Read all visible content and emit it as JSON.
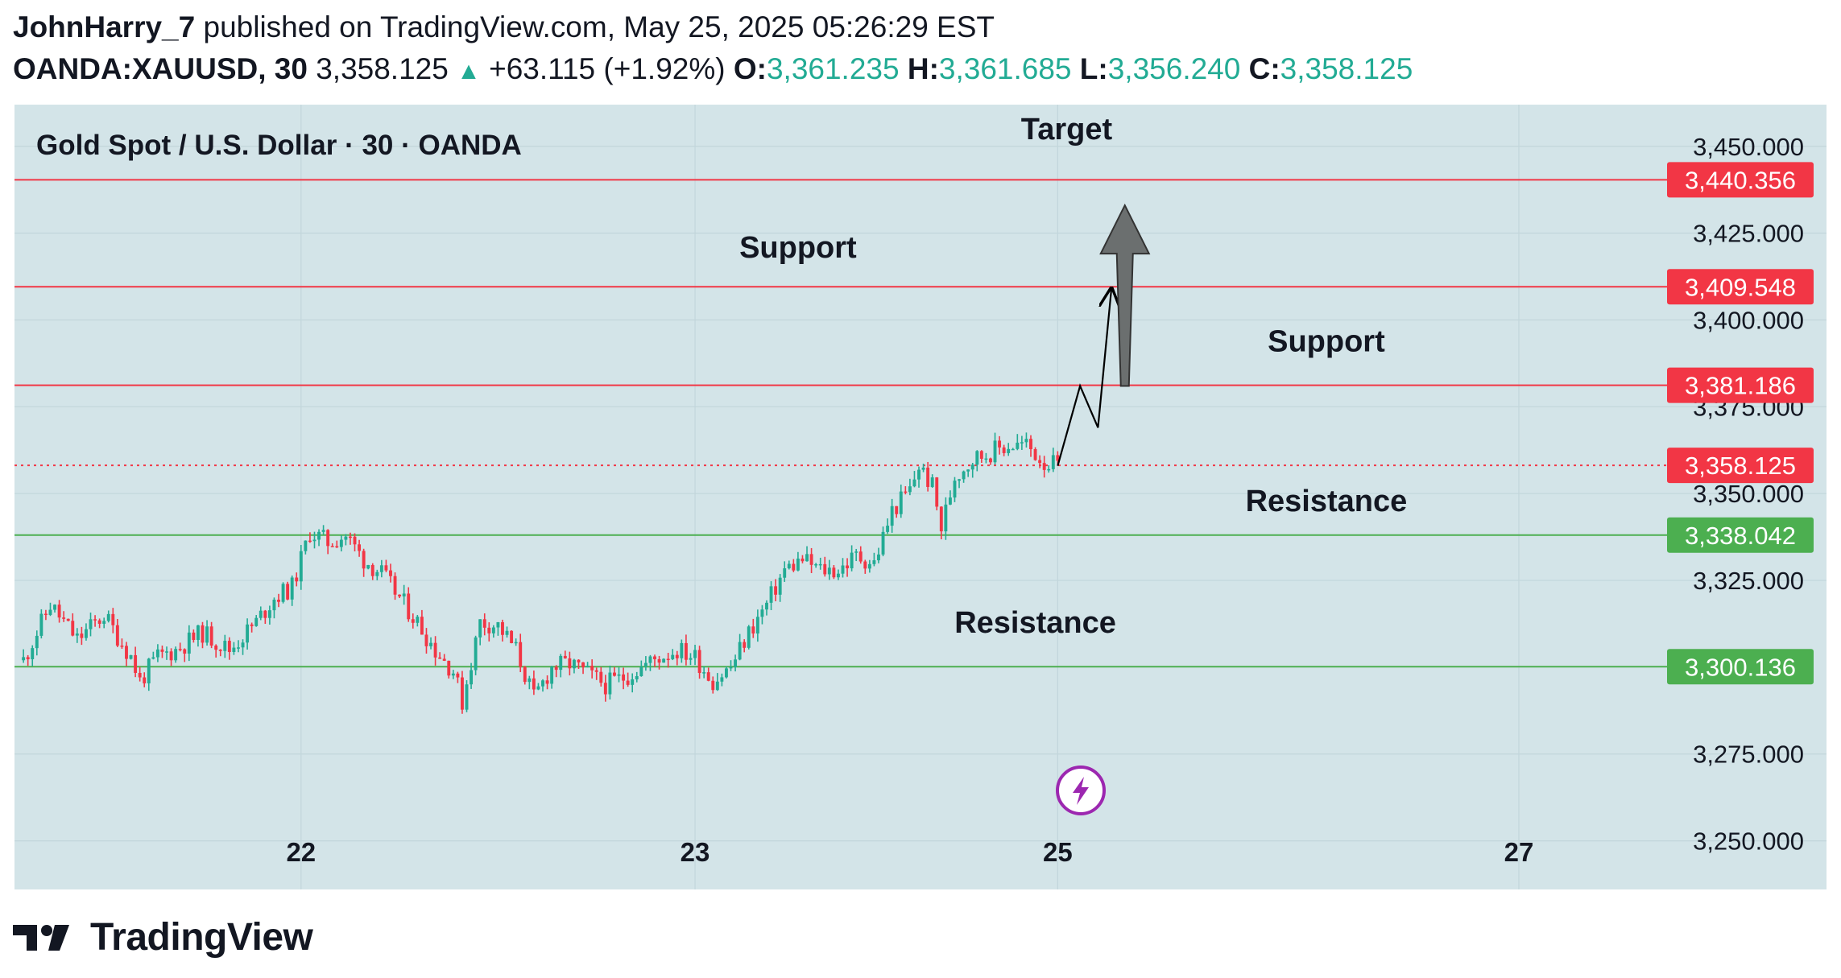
{
  "header": {
    "author": "JohnHarry_7",
    "published_text": "published on TradingView.com, May 25, 2025 05:26:29 EST",
    "symbol": "OANDA:XAUUSD, 30",
    "last": "3,358.125",
    "change": "+63.115 (+1.92%)",
    "o_label": "O:",
    "o_value": "3,361.235",
    "h_label": "H:",
    "h_value": "3,361.685",
    "l_label": "L:",
    "l_value": "3,356.240",
    "c_label": "C:",
    "c_value": "3,358.125"
  },
  "footer": {
    "brand": "TradingView"
  },
  "colors": {
    "background": "#d3e4e8",
    "up": "#22ab94",
    "down": "#f23645",
    "resistance_line": "#4caf50",
    "support_line": "#f23645",
    "arrow": "#6b6f6f"
  },
  "chart_data": {
    "type": "candlestick",
    "title": "Gold Spot / U.S. Dollar · 30 · OANDA",
    "ylim": [
      3236,
      3462
    ],
    "y_ticks": [
      "3,450.000",
      "3,425.000",
      "3,400.000",
      "3,375.000",
      "3,350.000",
      "3,325.000",
      "3,275.000",
      "3,250.000"
    ],
    "y_tick_values": [
      3450,
      3425,
      3400,
      3375,
      3350,
      3325,
      3275,
      3250
    ],
    "x_ticks": [
      "22",
      "23",
      "25",
      "27"
    ],
    "x_tick_index": [
      62,
      150,
      231,
      334
    ],
    "x_domain": [
      -2,
      368
    ],
    "levels": [
      {
        "value": 3440.356,
        "label": "3,440.356",
        "kind": "target",
        "style": "solid",
        "color": "#f23645"
      },
      {
        "value": 3409.548,
        "label": "3,409.548",
        "kind": "support",
        "style": "solid",
        "color": "#f23645"
      },
      {
        "value": 3381.186,
        "label": "3,381.186",
        "kind": "support",
        "style": "solid",
        "color": "#f23645"
      },
      {
        "value": 3358.125,
        "label": "3,358.125",
        "kind": "last",
        "style": "dotted",
        "color": "#f23645"
      },
      {
        "value": 3338.042,
        "label": "3,338.042",
        "kind": "resistance",
        "style": "solid",
        "color": "#4caf50"
      },
      {
        "value": 3300.136,
        "label": "3,300.136",
        "kind": "resistance",
        "style": "solid",
        "color": "#4caf50"
      }
    ],
    "annotations": [
      {
        "text": "Target",
        "x": 233,
        "y": 3452
      },
      {
        "text": "Support",
        "x": 173,
        "y": 3418
      },
      {
        "text": "Support",
        "x": 291,
        "y": 3391
      },
      {
        "text": "Resistance",
        "x": 291,
        "y": 3345
      },
      {
        "text": "Resistance",
        "x": 226,
        "y": 3310
      }
    ],
    "projection_path": [
      [
        231,
        3358
      ],
      [
        236,
        3381
      ],
      [
        240,
        3369
      ],
      [
        243,
        3409
      ]
    ],
    "projection_arrow": [
      [
        246,
        3381
      ],
      [
        246,
        3433
      ]
    ],
    "anchors": [
      [
        0,
        3302
      ],
      [
        6,
        3318
      ],
      [
        12,
        3308
      ],
      [
        18,
        3315
      ],
      [
        24,
        3303
      ],
      [
        26,
        3296
      ],
      [
        30,
        3303
      ],
      [
        34,
        3305
      ],
      [
        40,
        3310
      ],
      [
        46,
        3305
      ],
      [
        52,
        3313
      ],
      [
        56,
        3320
      ],
      [
        60,
        3323
      ],
      [
        64,
        3339
      ],
      [
        68,
        3336
      ],
      [
        72,
        3338
      ],
      [
        76,
        3331
      ],
      [
        80,
        3327
      ],
      [
        84,
        3320
      ],
      [
        88,
        3313
      ],
      [
        92,
        3305
      ],
      [
        96,
        3299
      ],
      [
        98,
        3290
      ],
      [
        102,
        3313
      ],
      [
        106,
        3312
      ],
      [
        110,
        3305
      ],
      [
        114,
        3291
      ],
      [
        118,
        3300
      ],
      [
        122,
        3301
      ],
      [
        126,
        3298
      ],
      [
        130,
        3295
      ],
      [
        134,
        3297
      ],
      [
        138,
        3300
      ],
      [
        142,
        3303
      ],
      [
        146,
        3305
      ],
      [
        150,
        3303
      ],
      [
        154,
        3296
      ],
      [
        158,
        3300
      ],
      [
        162,
        3310
      ],
      [
        166,
        3318
      ],
      [
        170,
        3328
      ],
      [
        174,
        3331
      ],
      [
        178,
        3328
      ],
      [
        182,
        3328
      ],
      [
        186,
        3332
      ],
      [
        190,
        3330
      ],
      [
        194,
        3345
      ],
      [
        198,
        3351
      ],
      [
        200,
        3358
      ],
      [
        203,
        3352
      ],
      [
        205,
        3340
      ],
      [
        208,
        3355
      ],
      [
        212,
        3360
      ],
      [
        216,
        3362
      ],
      [
        220,
        3364
      ],
      [
        224,
        3364
      ],
      [
        228,
        3359
      ],
      [
        231,
        3358
      ]
    ],
    "candles": [],
    "candle_seed": 11
  }
}
